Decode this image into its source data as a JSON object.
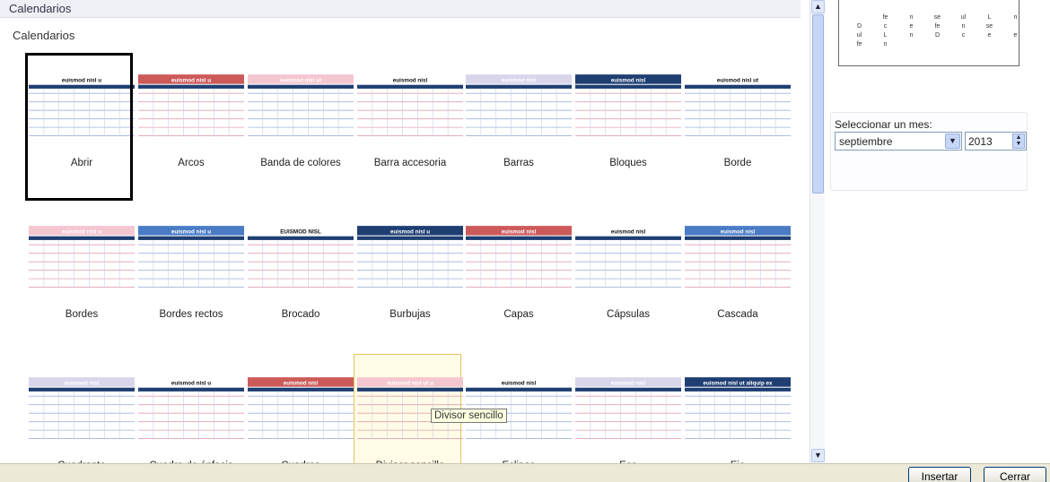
{
  "window": {
    "header_title": "Calendarios",
    "section_title": "Calendarios"
  },
  "gallery": {
    "items": [
      {
        "label": "Abrir",
        "title": "euismod nisl u"
      },
      {
        "label": "Arcos",
        "title": "euismod nisl u"
      },
      {
        "label": "Banda de colores",
        "title": "euismod nisl ut"
      },
      {
        "label": "Barra accesoria",
        "title": "euismod nisl"
      },
      {
        "label": "Barras",
        "title": "euismod nisl"
      },
      {
        "label": "Bloques",
        "title": "euismod nisl"
      },
      {
        "label": "Borde",
        "title": "euismod nisl ut"
      },
      {
        "label": "Bordes",
        "title": "euismod nisl u"
      },
      {
        "label": "Bordes rectos",
        "title": "euismod nisl u"
      },
      {
        "label": "Brocado",
        "title": "EUISMOD NISL"
      },
      {
        "label": "Burbujas",
        "title": "euismod nisl u"
      },
      {
        "label": "Capas",
        "title": "euismod nisl"
      },
      {
        "label": "Cápsulas",
        "title": "euismod nisl"
      },
      {
        "label": "Cascada",
        "title": "euismod nisl"
      },
      {
        "label": "Cuadrante",
        "title": "euismod nisl"
      },
      {
        "label": "Cuadro de énfasis",
        "title": "euismod nisl u"
      },
      {
        "label": "Cuadros",
        "title": "euismod nisl"
      },
      {
        "label": "Divisor sencillo",
        "title": "euismod nisl ut u"
      },
      {
        "label": "Eclipse",
        "title": "euismod nisl"
      },
      {
        "label": "Eco",
        "title": "euismod nisl"
      },
      {
        "label": "Eje",
        "title": "euismod nisl ut aliquip ex"
      }
    ],
    "tooltip": "Divisor sencillo"
  },
  "preview": {
    "cells": [
      "",
      "fe",
      "n",
      "se",
      "ul",
      "L",
      "n",
      "D",
      "c",
      "e",
      "fe",
      "n",
      "se",
      "",
      "ul",
      "L",
      "n",
      "D",
      "c",
      "e",
      "e",
      "fe",
      "n",
      "",
      "",
      "",
      "",
      ""
    ]
  },
  "month_selector": {
    "label": "Seleccionar un mes:",
    "month": "septiembre",
    "year": "2013"
  },
  "buttons": {
    "insert": "Insertar",
    "close": "Cerrar"
  },
  "colors": {
    "navy": "#1f3f73",
    "red": "#cd5a5a",
    "pink": "#f4c6d0",
    "blue": "#4a7cc6",
    "lavender": "#d9d6ec"
  }
}
